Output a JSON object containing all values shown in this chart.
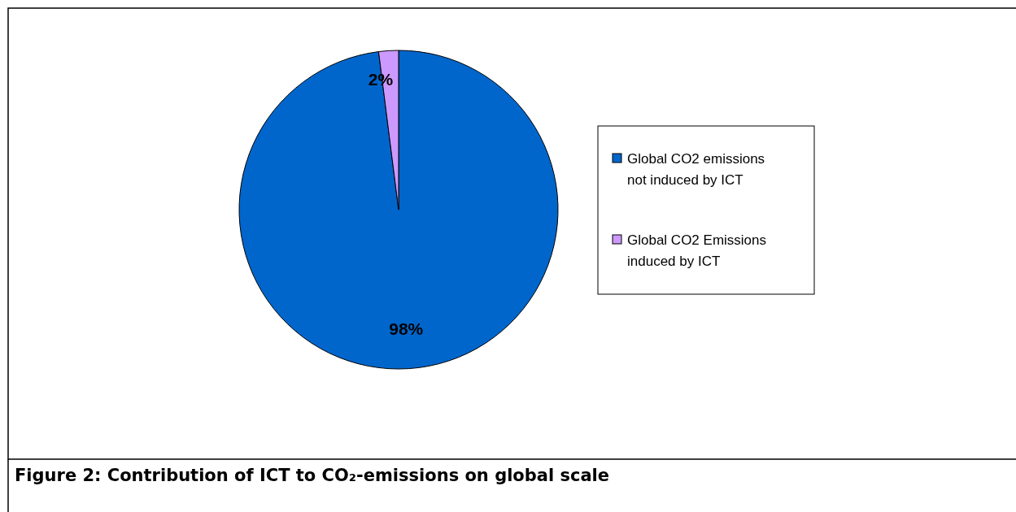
{
  "chart_data": {
    "type": "pie",
    "title": "Figure 2: Contribution of ICT to CO₂-emissions on global scale",
    "categories": [
      "Global CO2 emissions not induced by ICT",
      "Global CO2 Emissions induced by ICT"
    ],
    "values": [
      98,
      2
    ],
    "colors": [
      "#0066cc",
      "#cc99ff"
    ],
    "value_labels": [
      "98%",
      "2%"
    ],
    "legend": "right"
  }
}
